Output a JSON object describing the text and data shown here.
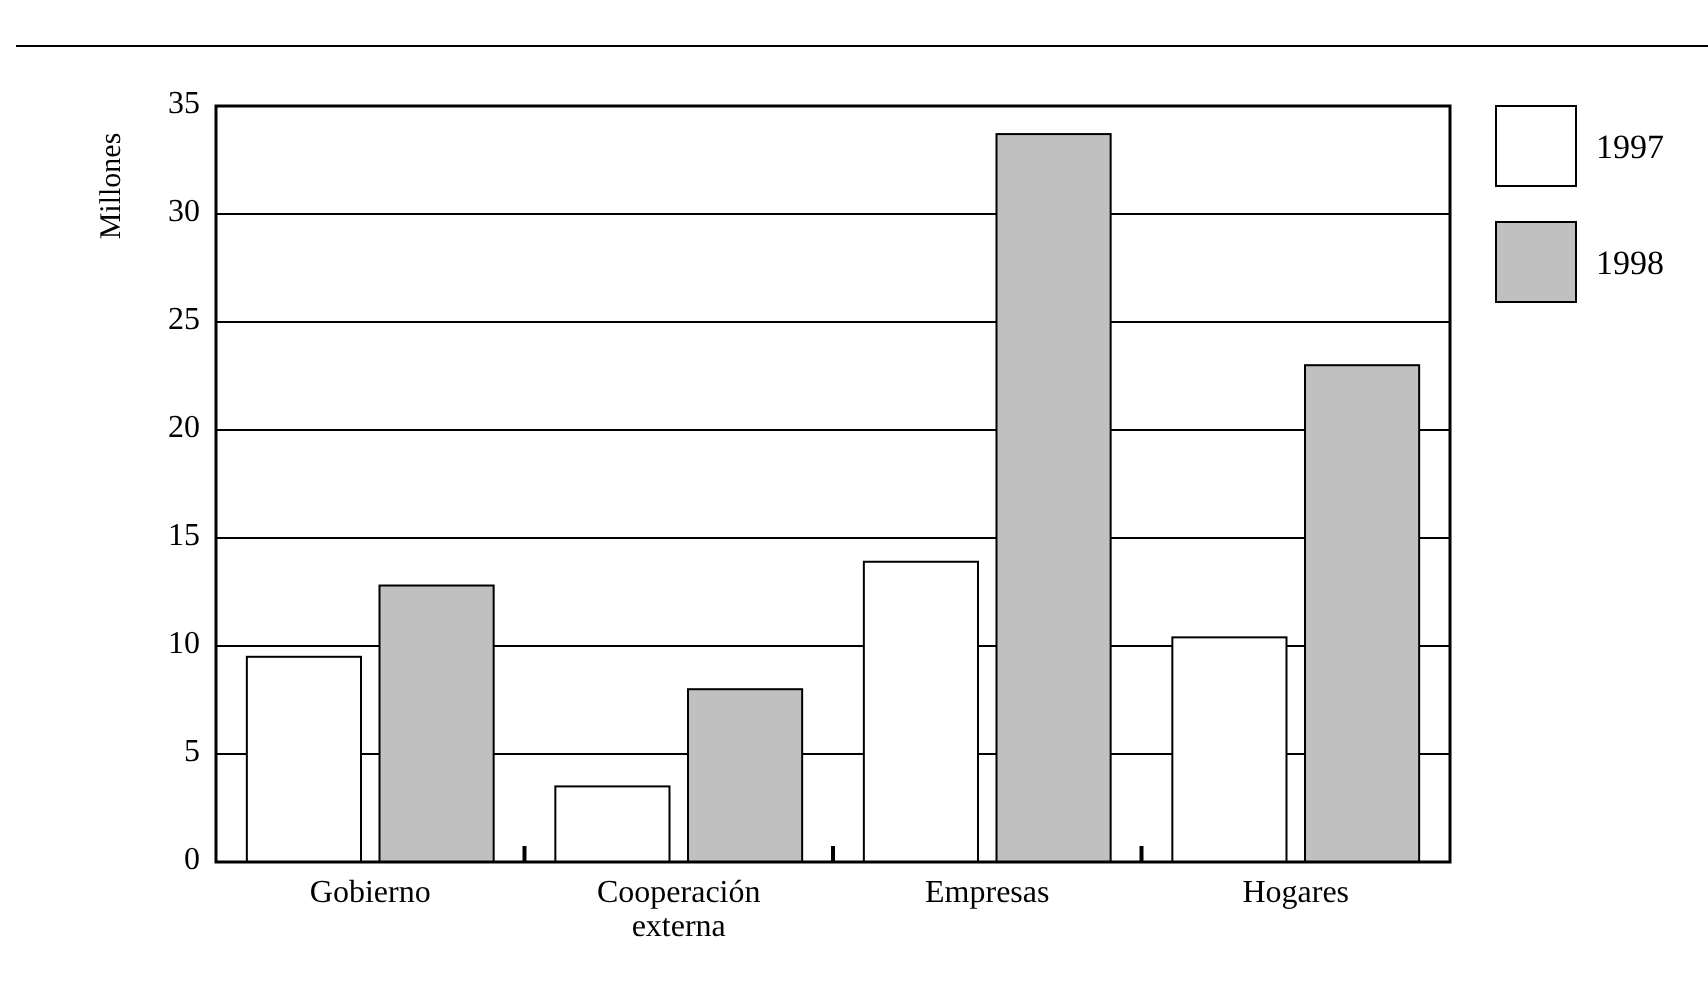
{
  "chart_data": {
    "type": "bar",
    "ylabel": "Millones",
    "categories": [
      "Gobierno",
      "Cooperación externa",
      "Empresas",
      "Hogares"
    ],
    "series": [
      {
        "name": "1997",
        "color": "#ffffff",
        "values": [
          9.5,
          3.5,
          13.9,
          10.4
        ]
      },
      {
        "name": "1998",
        "color": "#c0c0c0",
        "values": [
          12.8,
          8,
          33.7,
          23
        ]
      }
    ],
    "ylim": [
      0,
      35
    ],
    "yticks": [
      0,
      5,
      10,
      15,
      20,
      25,
      30,
      35
    ],
    "grid": "y",
    "legend": "top right"
  }
}
